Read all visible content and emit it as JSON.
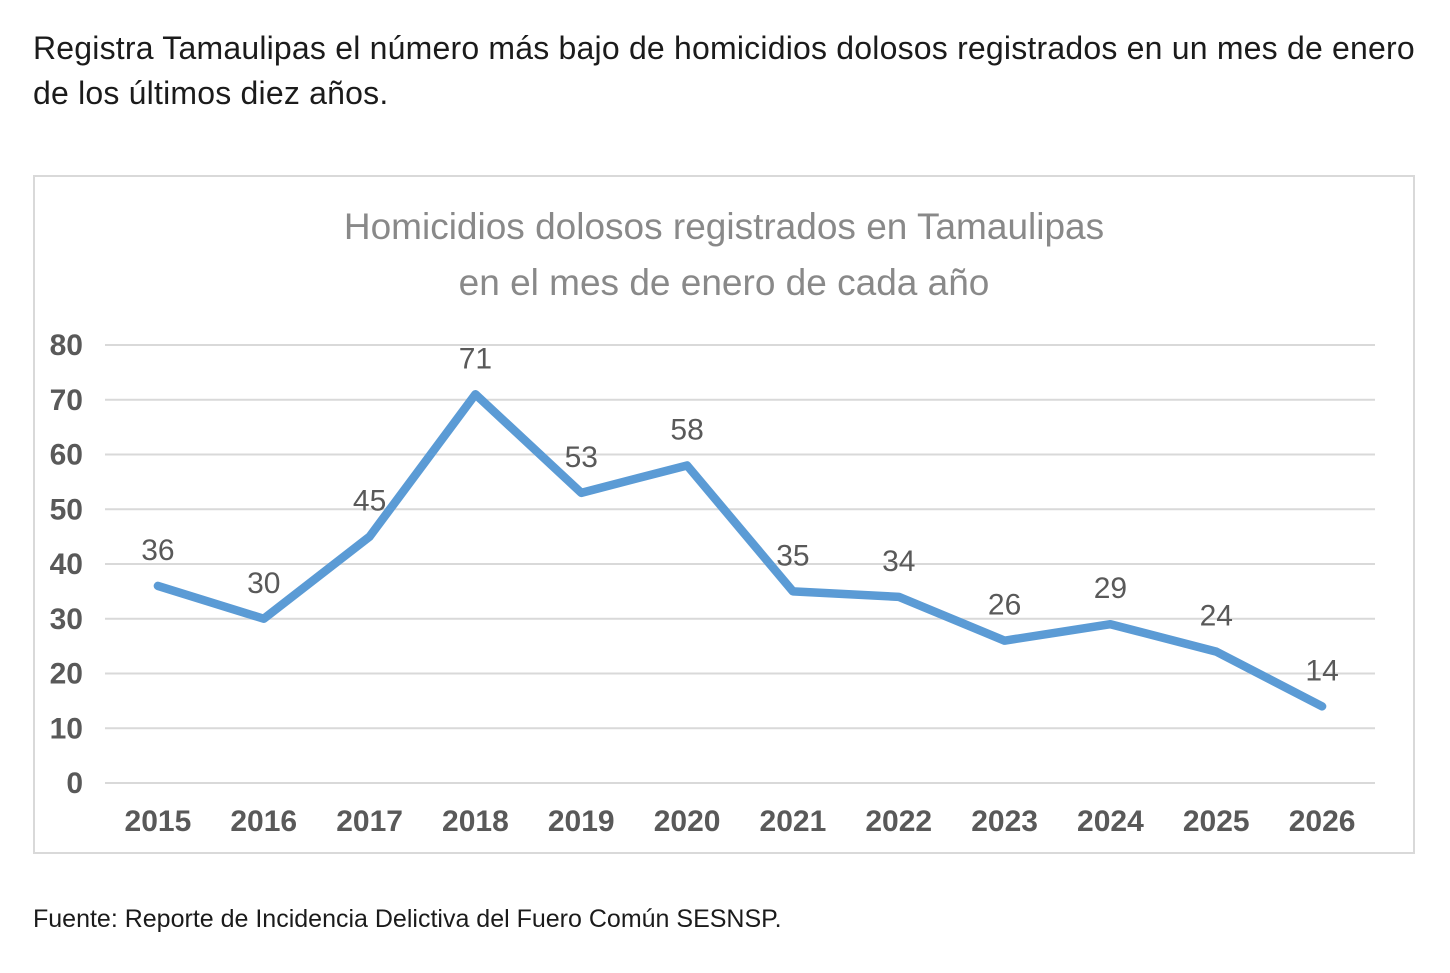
{
  "page": {
    "header_text": "Registra Tamaulipas el número más bajo de homicidios dolosos registrados en un mes de enero de los últimos diez años.",
    "source_text": "Fuente: Reporte de Incidencia Delictiva del Fuero Común SESNSP."
  },
  "chart_data": {
    "type": "line",
    "title": "Homicidios dolosos registrados en Tamaulipas en el mes de enero de cada año",
    "title_lines": [
      "Homicidios dolosos registrados en Tamaulipas",
      "en el mes de enero de cada año"
    ],
    "categories": [
      "2015",
      "2016",
      "2017",
      "2018",
      "2019",
      "2020",
      "2021",
      "2022",
      "2023",
      "2024",
      "2025",
      "2026"
    ],
    "values": [
      36,
      30,
      45,
      71,
      53,
      58,
      35,
      34,
      26,
      29,
      24,
      14
    ],
    "xlabel": "",
    "ylabel": "",
    "ylim": [
      0,
      80
    ],
    "yticks": [
      0,
      10,
      20,
      30,
      40,
      50,
      60,
      70,
      80
    ],
    "grid": true,
    "legend": "none",
    "data_labels": true,
    "colors": {
      "line": "#5B9BD5",
      "grid": "#d9d9d9",
      "axis_labels": "#595959",
      "data_labels": "#595959",
      "title": "#898989",
      "frame_border": "#d9d9d9"
    }
  }
}
